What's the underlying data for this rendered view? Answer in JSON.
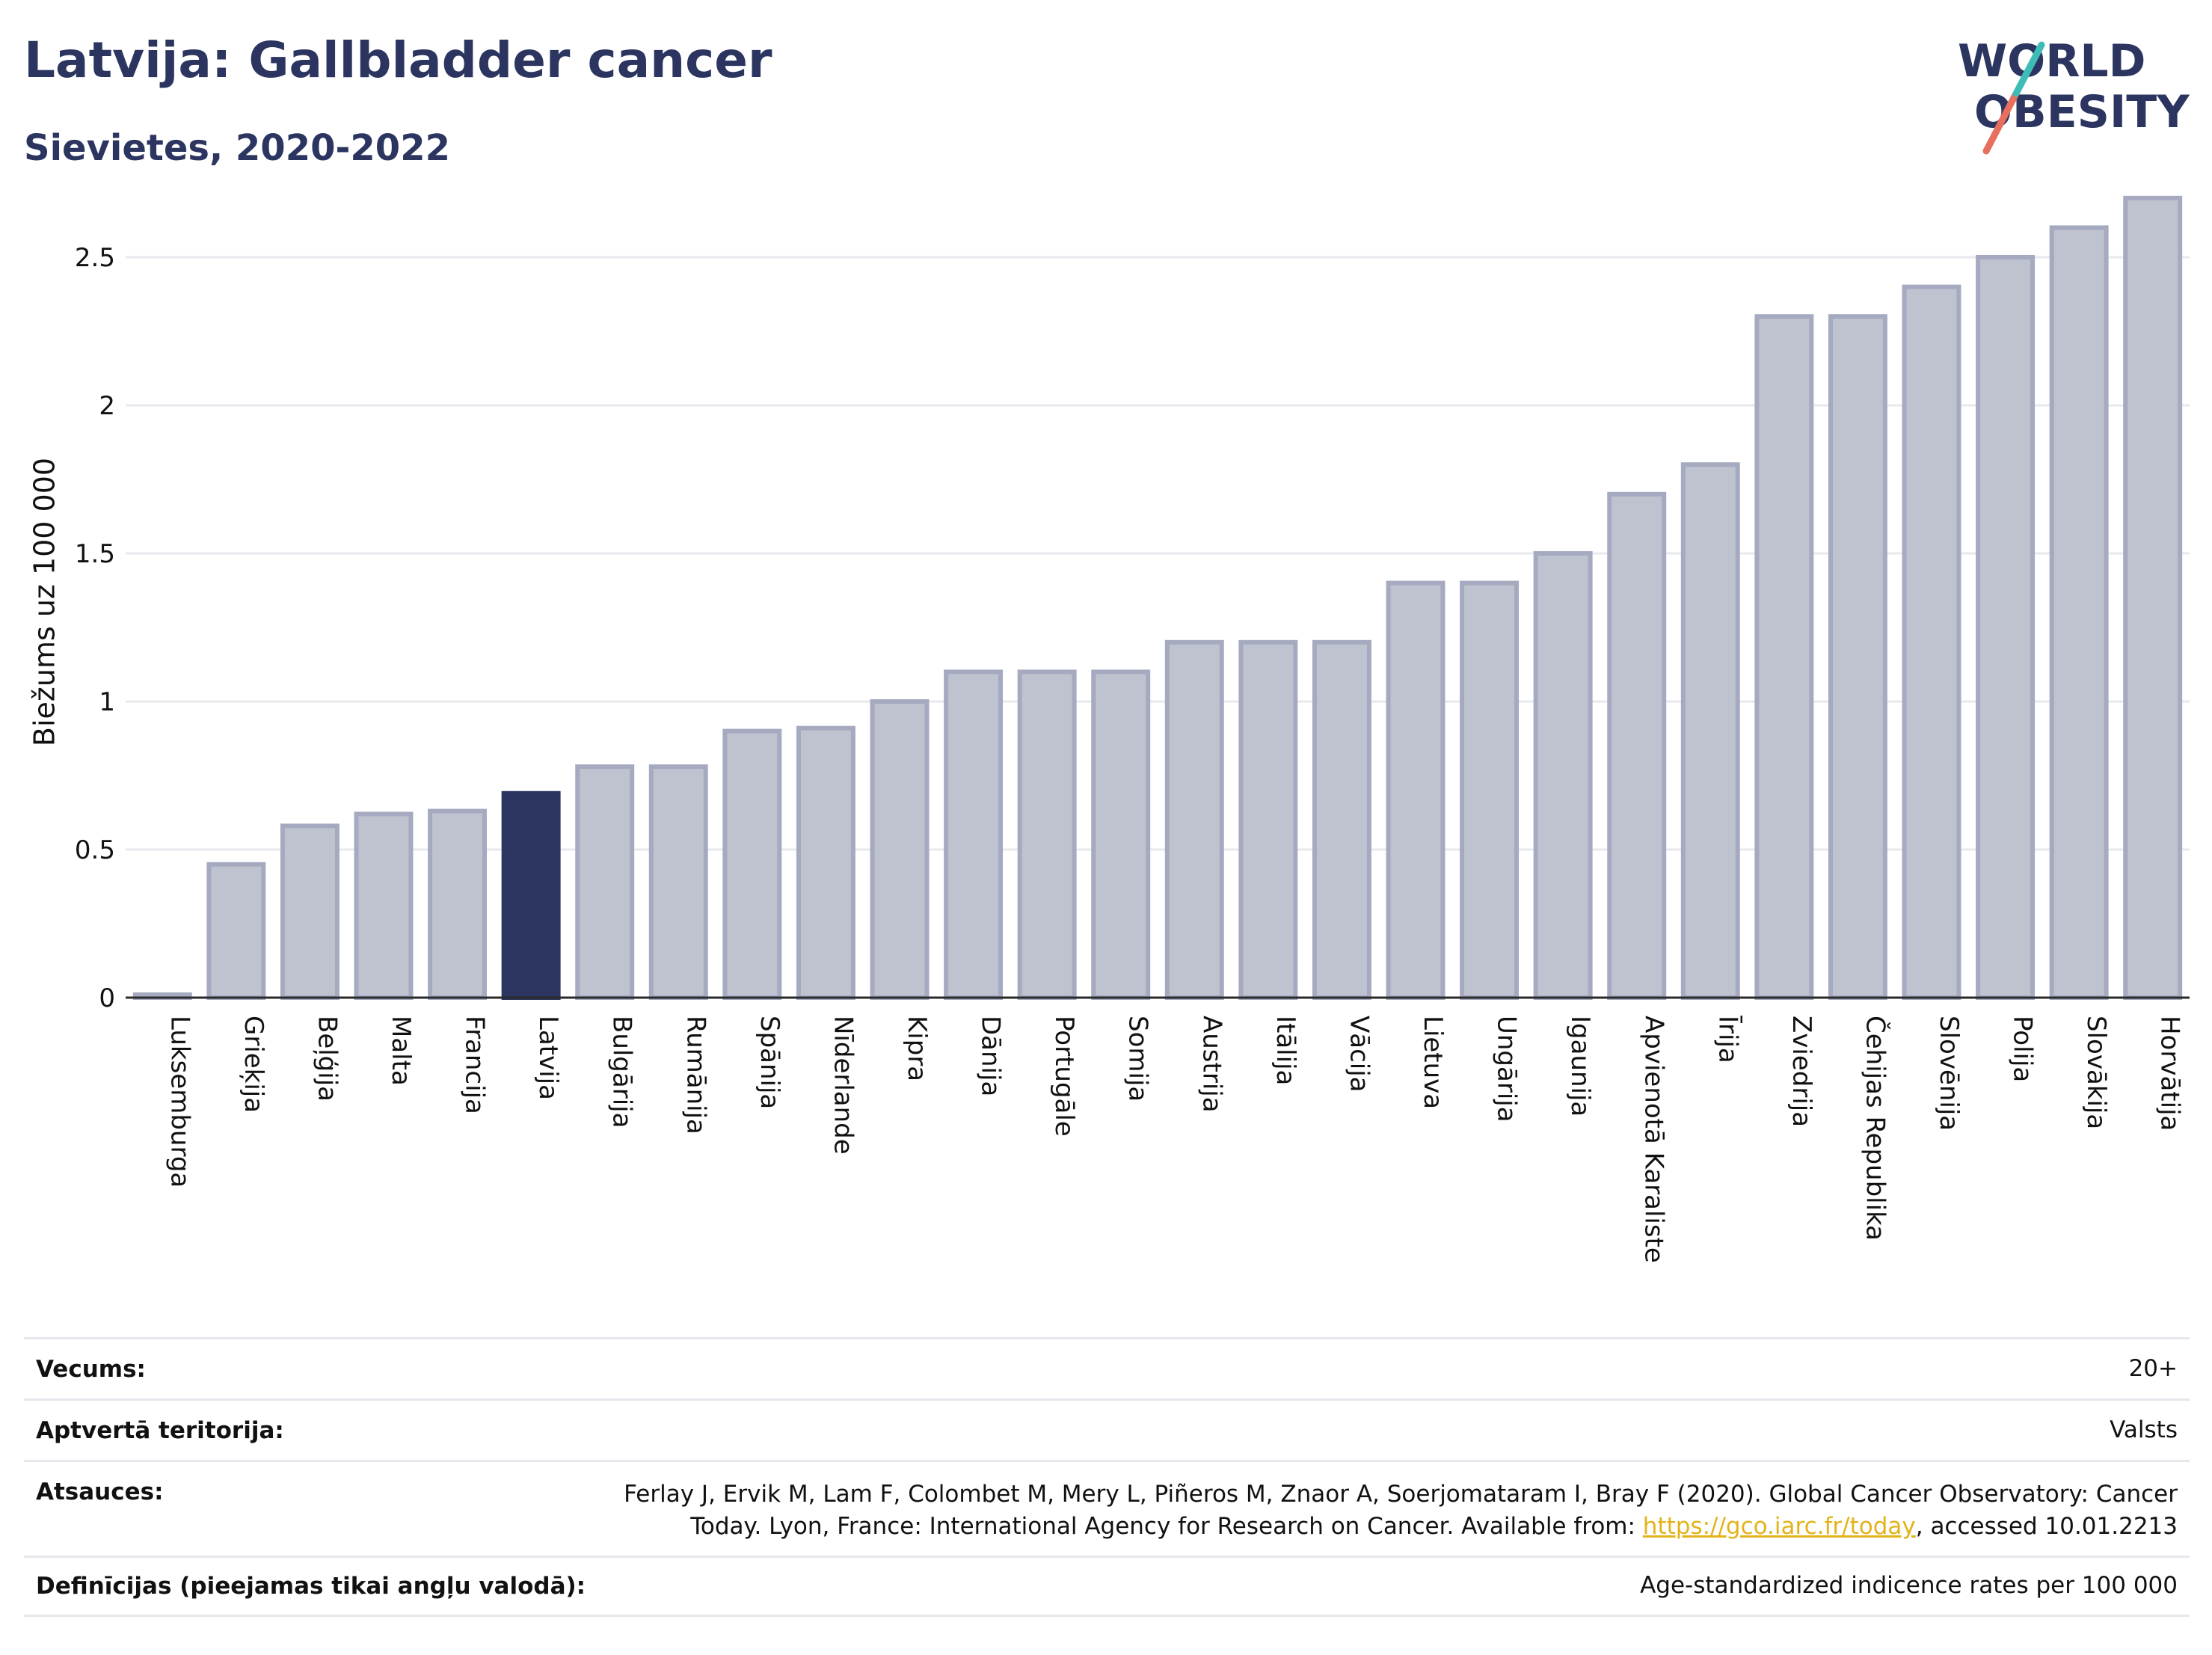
{
  "header": {
    "title": "Latvija: Gallbladder cancer",
    "subtitle": "Sievietes, 2020-2022"
  },
  "logo": {
    "line1": "WORLD",
    "line2": "OBESITY",
    "colors": [
      "#2b3560",
      "#e76f5e",
      "#3dbdb5"
    ]
  },
  "chart_data": {
    "type": "bar",
    "title": "Latvija: Gallbladder cancer",
    "subtitle": "Sievietes, 2020-2022",
    "xlabel": "",
    "ylabel": "Biežums uz 100 000",
    "ylim": [
      0,
      2.75
    ],
    "yticks": [
      0,
      0.5,
      1,
      1.5,
      2,
      2.5
    ],
    "ytick_labels": [
      "0",
      "0.5",
      "1",
      "1.5",
      "2",
      "2.5"
    ],
    "grid": true,
    "highlight": "Latvija",
    "colors": {
      "bar": "#bfc2cf",
      "bar_edge": "#a5aac0",
      "highlight": "#2b3560",
      "grid": "#e8e9ee"
    },
    "categories": [
      "Luksemburga",
      "Grieķija",
      "Beļģija",
      "Malta",
      "Francija",
      "Latvija",
      "Bulgārija",
      "Rumānija",
      "Spānija",
      "Nīderlande",
      "Kipra",
      "Dānija",
      "Portugāle",
      "Somija",
      "Austrija",
      "Itālija",
      "Vācija",
      "Lietuva",
      "Ungārija",
      "Igaunija",
      "Apvienotā Karaliste",
      "Īrija",
      "Zviedrija",
      "Čehijas Republika",
      "Slovēnija",
      "Polija",
      "Slovākija",
      "Horvātija"
    ],
    "values": [
      0.01,
      0.45,
      0.58,
      0.62,
      0.63,
      0.69,
      0.78,
      0.78,
      0.9,
      0.91,
      1.0,
      1.1,
      1.1,
      1.1,
      1.2,
      1.2,
      1.2,
      1.4,
      1.4,
      1.5,
      1.7,
      1.8,
      2.3,
      2.3,
      2.4,
      2.5,
      2.6,
      2.7
    ]
  },
  "info": {
    "age_label": "Vecums:",
    "age_value": "20+",
    "territory_label": "Aptvertā teritorija:",
    "territory_value": "Valsts",
    "refs_label": "Atsauces:",
    "refs_line1": "Ferlay J, Ervik M, Lam F, Colombet M, Mery L, Piñeros M, Znaor A, Soerjomataram I, Bray F (2020). Global Cancer Observatory: Cancer",
    "refs_line2_pre": "Today. Lyon, France: International Agency for Research on Cancer. Available from: ",
    "refs_link": "https://gco.iarc.fr/today",
    "refs_line2_post": ", accessed 10.01.2213",
    "defs_label": "Definīcijas (pieejamas tikai angļu valodā):",
    "defs_value": "Age-standardized indicence rates per 100 000"
  }
}
